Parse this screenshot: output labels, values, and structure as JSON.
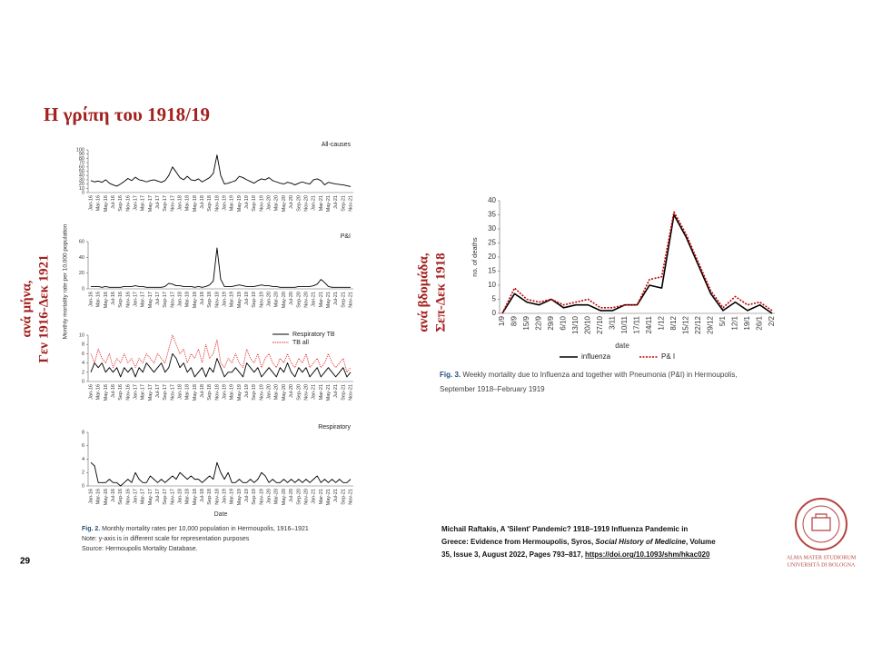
{
  "slide": {
    "title": "Η γρίπη του 1918/19",
    "left_side": [
      "ανά μήνα,",
      "Γεν 1916-Δεκ 1921"
    ],
    "right_side": [
      "ανά βδομάδα,",
      "Σεπ-Δεκ 1918"
    ],
    "page_number": "29"
  },
  "left_figure": {
    "caption_label": "Fig. 2.",
    "caption": " Monthly mortality rates per 10,000 population in Hermoupolis, 1916–1921",
    "note": "Note: y-axis is in different scale for representation purposes",
    "source": "Source: Hermoupolis Mortality Database."
  },
  "right_figure": {
    "caption_label": "Fig. 3.",
    "caption": " Weekly mortality due to Influenza and together with Pneumonia (P&I) in Hermoupolis,",
    "caption_line2": "September 1918–February 1919"
  },
  "citation": {
    "line1": "Michail Raftakis, A 'Silent' Pandemic? 1918–1919 Influenza Pandemic in",
    "line2a": "Greece: Evidence from Hermoupolis, Syros, ",
    "journal": "Social History of Medicine",
    "line2b": ", Volume",
    "line3a": "35, Issue 3, August 2022, Pages 793–817, ",
    "link": "https://doi.org/10.1093/shm/hkac020"
  },
  "logo": {
    "line1": "ALMA MATER STUDIORUM",
    "line2": "UNIVERSITÀ DI BOLOGNA"
  },
  "chart_data": [
    {
      "type": "line",
      "ylabel": "Monthly mortality rate per 10,000 population",
      "xlabel": "Date",
      "categories": [
        "Jan-16",
        null,
        "Mar-16",
        null,
        "May-16",
        null,
        "Jul-16",
        null,
        "Sep-16",
        null,
        "Nov-16",
        null,
        "Jan-17",
        null,
        "Mar-17",
        null,
        "May-17",
        null,
        "Jul-17",
        null,
        "Sep-17",
        null,
        "Nov-17",
        null,
        "Jan-18",
        null,
        "Mar-18",
        null,
        "May-18",
        null,
        "Jul-18",
        null,
        "Sep-18",
        null,
        "Nov-18",
        null,
        "Jan-19",
        null,
        "Mar-19",
        null,
        "May-19",
        null,
        "Jul-19",
        null,
        "Sep-19",
        null,
        "Nov-19",
        null,
        "Jan-20",
        null,
        "Mar-20",
        null,
        "May-20",
        null,
        "Jul-20",
        null,
        "Sep-20",
        null,
        "Nov-20",
        null,
        "Jan-21",
        null,
        "Mar-21",
        null,
        "May-21",
        null,
        "Jul-21",
        null,
        "Sep-21",
        null,
        "Nov-21"
      ],
      "panels": [
        {
          "label": "All-causes",
          "ylim": [
            0,
            100
          ],
          "yticks": [
            0,
            10,
            20,
            30,
            40,
            50,
            60,
            70,
            80,
            90,
            100
          ],
          "series": [
            {
              "color": "#000000",
              "values": [
                28,
                25,
                27,
                24,
                30,
                22,
                18,
                15,
                20,
                26,
                33,
                28,
                36,
                30,
                28,
                25,
                28,
                30,
                27,
                24,
                28,
                40,
                60,
                48,
                35,
                30,
                38,
                30,
                28,
                32,
                25,
                30,
                35,
                45,
                88,
                40,
                20,
                22,
                25,
                28,
                38,
                35,
                30,
                26,
                22,
                28,
                32,
                30,
                35,
                28,
                25,
                22,
                20,
                24,
                22,
                18,
                22,
                25,
                22,
                20,
                30,
                32,
                28,
                18,
                24,
                22,
                20,
                19,
                18,
                16,
                14
              ]
            }
          ]
        },
        {
          "label": "P&I",
          "ylim": [
            0,
            60
          ],
          "yticks": [
            0,
            20,
            40,
            60
          ],
          "series": [
            {
              "color": "#000000",
              "values": [
                3,
                3,
                3,
                2,
                3,
                2,
                2,
                2,
                2,
                3,
                3,
                3,
                4,
                3,
                3,
                2,
                2,
                2,
                2,
                2,
                3,
                7,
                6,
                4,
                4,
                3,
                3,
                3,
                2,
                3,
                2,
                3,
                5,
                10,
                52,
                12,
                3,
                3,
                3,
                4,
                5,
                4,
                3,
                3,
                3,
                4,
                5,
                4,
                4,
                3,
                3,
                2,
                2,
                2,
                2,
                2,
                3,
                3,
                3,
                3,
                4,
                6,
                12,
                8,
                3,
                2,
                2,
                2,
                2,
                2,
                2
              ]
            }
          ]
        },
        {
          "ylim": [
            0,
            10
          ],
          "yticks": [
            0,
            2,
            4,
            6,
            8,
            10
          ],
          "series": [
            {
              "name": "Respiratory TB",
              "color": "#000000",
              "values": [
                2,
                4,
                3,
                4,
                2,
                3,
                2,
                3,
                1,
                3,
                2,
                3,
                1,
                3,
                2,
                4,
                3,
                2,
                3,
                4,
                2,
                3,
                6,
                5,
                3,
                4,
                2,
                3,
                1,
                2,
                3,
                1,
                3,
                2,
                5,
                3,
                1,
                2,
                2,
                3,
                2,
                1,
                4,
                3,
                2,
                3,
                1,
                2,
                3,
                2,
                1,
                3,
                2,
                4,
                2,
                1,
                3,
                2,
                3,
                1,
                2,
                3,
                1,
                2,
                3,
                2,
                1,
                2,
                3,
                1,
                2
              ]
            },
            {
              "name": "TB all",
              "color": "#e03030",
              "style": "dotted",
              "values": [
                6,
                4,
                7,
                5,
                4,
                6,
                3,
                5,
                4,
                6,
                4,
                5,
                3,
                5,
                4,
                6,
                5,
                4,
                6,
                5,
                4,
                7,
                10,
                8,
                6,
                7,
                4,
                6,
                5,
                7,
                4,
                8,
                5,
                6,
                9,
                4,
                3,
                5,
                4,
                6,
                4,
                3,
                7,
                5,
                4,
                6,
                3,
                5,
                6,
                4,
                3,
                5,
                4,
                6,
                4,
                3,
                5,
                4,
                6,
                3,
                4,
                5,
                3,
                4,
                6,
                4,
                3,
                4,
                5,
                2,
                3
              ]
            }
          ]
        },
        {
          "label": "Respiratory",
          "ylim": [
            0,
            8
          ],
          "yticks": [
            0,
            2,
            4,
            6,
            8
          ],
          "series": [
            {
              "color": "#000000",
              "values": [
                3.5,
                3,
                0.5,
                0.5,
                0.5,
                1,
                0.5,
                0.5,
                0,
                0.5,
                1,
                0.5,
                2,
                1,
                0.5,
                0.5,
                1.5,
                1,
                0.5,
                1,
                0.5,
                1,
                1.5,
                1,
                2,
                1.5,
                1,
                1.5,
                1,
                1,
                0.5,
                1,
                1.5,
                1,
                3.5,
                2,
                1,
                2,
                0.5,
                0.5,
                1,
                0.5,
                0.5,
                1,
                0.5,
                1,
                2,
                1.5,
                0.5,
                1,
                0.5,
                0.5,
                1,
                0.5,
                1,
                0.5,
                1,
                0.5,
                1,
                0.5,
                1,
                1.5,
                0.5,
                1,
                0.5,
                1,
                0.5,
                1,
                0.5,
                0.5,
                1
              ]
            }
          ]
        }
      ]
    },
    {
      "type": "line",
      "ylabel": "no. of deaths",
      "xlabel": "date",
      "categories": [
        "1/9",
        "8/9",
        "15/9",
        "22/9",
        "29/9",
        "6/10",
        "13/10",
        "20/10",
        "27/10",
        "3/11",
        "10/11",
        "17/11",
        "24/11",
        "1/12",
        "8/12",
        "15/12",
        "22/12",
        "29/12",
        "5/1",
        "12/1",
        "19/1",
        "26/1",
        "2/2"
      ],
      "ylim": [
        0,
        40
      ],
      "yticks": [
        0,
        5,
        10,
        15,
        20,
        25,
        30,
        35,
        40
      ],
      "legend": "bottom",
      "series": [
        {
          "name": "influenza",
          "color": "#000000",
          "values": [
            0,
            7,
            4,
            3,
            5,
            2,
            3,
            3,
            1,
            1,
            3,
            3,
            10,
            9,
            35,
            27,
            17,
            7,
            1,
            4,
            1,
            3,
            0
          ]
        },
        {
          "name": "P& I",
          "color": "#c00000",
          "style": "dotted",
          "values": [
            0,
            9,
            5,
            4,
            5,
            3,
            4,
            5,
            2,
            2,
            3,
            3,
            12,
            13,
            36,
            28,
            18,
            8,
            2,
            6,
            3,
            4,
            1
          ]
        }
      ]
    }
  ]
}
